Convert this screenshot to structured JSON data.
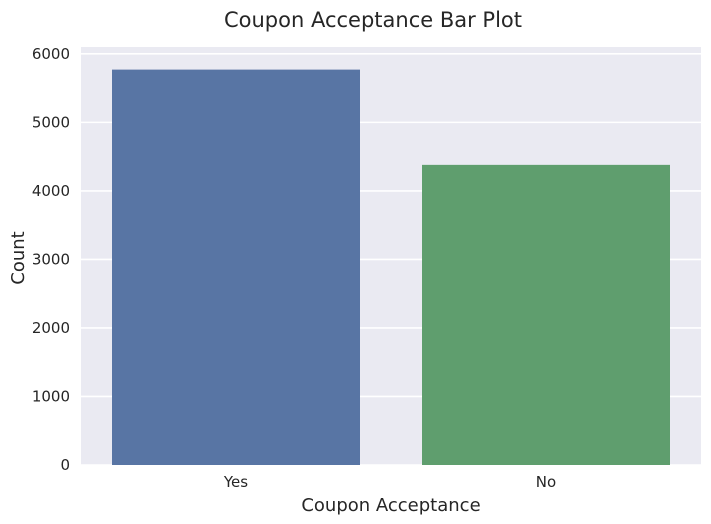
{
  "chart_data": {
    "type": "bar",
    "title": "Coupon Acceptance Bar Plot",
    "xlabel": "Coupon Acceptance",
    "ylabel": "Count",
    "categories": [
      "Yes",
      "No"
    ],
    "values": [
      5770,
      4380
    ],
    "ylim": [
      0,
      6100
    ],
    "yticks": [
      0,
      1000,
      2000,
      3000,
      4000,
      5000,
      6000
    ],
    "grid": true,
    "colors": [
      "#5875a4",
      "#5f9e6e"
    ],
    "background": "#eaeaf2",
    "gridColor": "#ffffff"
  }
}
